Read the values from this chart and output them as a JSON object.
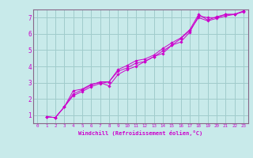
{
  "xlabel": "Windchill (Refroidissement éolien,°C)",
  "background_color": "#c8eaea",
  "grid_color": "#a0cccc",
  "line_color": "#cc00cc",
  "spine_color": "#886688",
  "xlim": [
    -0.5,
    23.5
  ],
  "ylim": [
    0.5,
    7.5
  ],
  "xticks": [
    0,
    1,
    2,
    3,
    4,
    5,
    6,
    7,
    8,
    9,
    10,
    11,
    12,
    13,
    14,
    15,
    16,
    17,
    18,
    19,
    20,
    21,
    22,
    23
  ],
  "yticks": [
    1,
    2,
    3,
    4,
    5,
    6,
    7
  ],
  "line1_x": [
    1,
    2,
    3,
    4,
    5,
    6,
    7,
    8,
    9,
    10,
    11,
    12,
    13,
    14,
    15,
    16,
    17,
    18,
    19,
    20,
    21,
    22,
    23
  ],
  "line1_y": [
    0.9,
    0.85,
    1.5,
    2.5,
    2.6,
    2.9,
    3.0,
    2.8,
    3.5,
    3.8,
    4.0,
    4.3,
    4.6,
    4.8,
    5.3,
    5.5,
    6.1,
    7.1,
    7.0,
    7.0,
    7.2,
    7.2,
    7.4
  ],
  "line2_x": [
    1,
    2,
    3,
    4,
    5,
    6,
    7,
    8,
    9,
    10,
    11,
    12,
    13,
    14,
    15,
    16,
    17,
    18,
    19,
    20,
    21,
    22,
    23
  ],
  "line2_y": [
    0.9,
    0.85,
    1.5,
    2.3,
    2.55,
    2.85,
    3.05,
    3.05,
    3.8,
    4.05,
    4.35,
    4.45,
    4.7,
    5.1,
    5.45,
    5.75,
    6.25,
    7.2,
    6.85,
    7.05,
    7.2,
    7.2,
    7.4
  ],
  "line3_x": [
    1,
    2,
    3,
    4,
    5,
    6,
    7,
    8,
    9,
    10,
    11,
    12,
    13,
    14,
    15,
    16,
    17,
    18,
    19,
    20,
    21,
    22,
    23
  ],
  "line3_y": [
    0.9,
    0.85,
    1.5,
    2.2,
    2.45,
    2.75,
    2.95,
    3.05,
    3.7,
    3.9,
    4.2,
    4.3,
    4.6,
    4.95,
    5.3,
    5.7,
    6.2,
    7.0,
    6.8,
    6.95,
    7.1,
    7.2,
    7.35
  ]
}
